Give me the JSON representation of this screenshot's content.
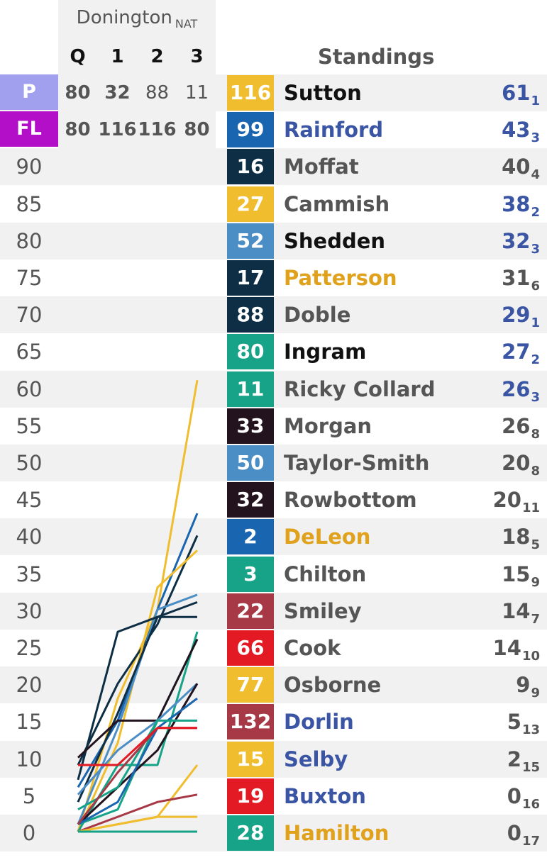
{
  "event": {
    "title": "Donington",
    "sub": "NAT"
  },
  "race_cols": [
    "Q",
    "1",
    "2",
    "3"
  ],
  "pole": {
    "label": "P",
    "values": [
      "80",
      "32",
      "88",
      "11"
    ],
    "color": "#a0a0ee"
  },
  "fastest_lap": {
    "label": "FL",
    "values": [
      "80",
      "116",
      "116",
      "80"
    ],
    "color": "#b40fc8"
  },
  "standings_title": "Standings",
  "scale_labels": [
    "90",
    "85",
    "80",
    "75",
    "70",
    "65",
    "60",
    "55",
    "50",
    "45",
    "40",
    "35",
    "30",
    "25",
    "20",
    "15",
    "10",
    "5",
    "0"
  ],
  "standings": [
    {
      "num": "116",
      "name": "Sutton",
      "points": "61",
      "pos": "1",
      "box": "#f0bd2e",
      "name_color": "#111111",
      "pts_color": "#3b55a5"
    },
    {
      "num": "99",
      "name": "Rainford",
      "points": "43",
      "pos": "3",
      "box": "#1a65b0",
      "name_color": "#3b55a5",
      "pts_color": "#3b55a5"
    },
    {
      "num": "16",
      "name": "Moffat",
      "points": "40",
      "pos": "4",
      "box": "#0d2e45",
      "name_color": "#555555",
      "pts_color": "#555555"
    },
    {
      "num": "27",
      "name": "Cammish",
      "points": "38",
      "pos": "2",
      "box": "#f0bd2e",
      "name_color": "#555555",
      "pts_color": "#3b55a5"
    },
    {
      "num": "52",
      "name": "Shedden",
      "points": "32",
      "pos": "3",
      "box": "#4b8ec6",
      "name_color": "#111111",
      "pts_color": "#3b55a5"
    },
    {
      "num": "17",
      "name": "Patterson",
      "points": "31",
      "pos": "6",
      "box": "#0d2e45",
      "name_color": "#e0a11d",
      "pts_color": "#555555"
    },
    {
      "num": "88",
      "name": "Doble",
      "points": "29",
      "pos": "1",
      "box": "#0d2e45",
      "name_color": "#555555",
      "pts_color": "#3b55a5"
    },
    {
      "num": "80",
      "name": "Ingram",
      "points": "27",
      "pos": "2",
      "box": "#16a388",
      "name_color": "#111111",
      "pts_color": "#3b55a5"
    },
    {
      "num": "11",
      "name": "Ricky Collard",
      "points": "26",
      "pos": "3",
      "box": "#16a388",
      "name_color": "#555555",
      "pts_color": "#3b55a5"
    },
    {
      "num": "33",
      "name": "Morgan",
      "points": "26",
      "pos": "8",
      "box": "#23131f",
      "name_color": "#555555",
      "pts_color": "#555555"
    },
    {
      "num": "50",
      "name": "Taylor-Smith",
      "points": "20",
      "pos": "8",
      "box": "#4b8ec6",
      "name_color": "#555555",
      "pts_color": "#555555"
    },
    {
      "num": "32",
      "name": "Rowbottom",
      "points": "20",
      "pos": "11",
      "box": "#23131f",
      "name_color": "#555555",
      "pts_color": "#555555"
    },
    {
      "num": "2",
      "name": "DeLeon",
      "points": "18",
      "pos": "5",
      "box": "#1a65b0",
      "name_color": "#e0a11d",
      "pts_color": "#555555"
    },
    {
      "num": "3",
      "name": "Chilton",
      "points": "15",
      "pos": "9",
      "box": "#16a388",
      "name_color": "#555555",
      "pts_color": "#555555"
    },
    {
      "num": "22",
      "name": "Smiley",
      "points": "14",
      "pos": "7",
      "box": "#a73845",
      "name_color": "#555555",
      "pts_color": "#555555"
    },
    {
      "num": "66",
      "name": "Cook",
      "points": "14",
      "pos": "10",
      "box": "#e31a24",
      "name_color": "#555555",
      "pts_color": "#555555"
    },
    {
      "num": "77",
      "name": "Osborne",
      "points": "9",
      "pos": "9",
      "box": "#f0bd2e",
      "name_color": "#555555",
      "pts_color": "#555555"
    },
    {
      "num": "132",
      "name": "Dorlin",
      "points": "5",
      "pos": "13",
      "box": "#a73845",
      "name_color": "#3b55a5",
      "pts_color": "#555555"
    },
    {
      "num": "15",
      "name": "Selby",
      "points": "2",
      "pos": "15",
      "box": "#f0bd2e",
      "name_color": "#3b55a5",
      "pts_color": "#555555"
    },
    {
      "num": "19",
      "name": "Buxton",
      "points": "0",
      "pos": "16",
      "box": "#e31a24",
      "name_color": "#3b55a5",
      "pts_color": "#555555"
    },
    {
      "num": "28",
      "name": "Hamilton",
      "points": "0",
      "pos": "17",
      "box": "#16a388",
      "name_color": "#e0a11d",
      "pts_color": "#555555"
    }
  ],
  "chart_data": {
    "type": "line",
    "x": [
      "Q",
      "1",
      "2",
      "3"
    ],
    "ylim": [
      0,
      92
    ],
    "series": [
      {
        "color": "#f0bd2e",
        "values": [
          0,
          18,
          30,
          61
        ]
      },
      {
        "color": "#1a65b0",
        "values": [
          6,
          15,
          30,
          43
        ]
      },
      {
        "color": "#0d2e45",
        "values": [
          9,
          20,
          28,
          40
        ]
      },
      {
        "color": "#f0bd2e",
        "values": [
          0,
          12,
          33,
          38
        ]
      },
      {
        "color": "#4b8ec6",
        "values": [
          1,
          14,
          30,
          32
        ]
      },
      {
        "color": "#0d2e45",
        "values": [
          7,
          27,
          29,
          31
        ]
      },
      {
        "color": "#0d2e45",
        "values": [
          4,
          16,
          29,
          29
        ]
      },
      {
        "color": "#16a388",
        "values": [
          0,
          9,
          9,
          27
        ]
      },
      {
        "color": "#16a388",
        "values": [
          1,
          3,
          15,
          26
        ]
      },
      {
        "color": "#23131f",
        "values": [
          10,
          15,
          15,
          26
        ]
      },
      {
        "color": "#4b8ec6",
        "values": [
          5,
          11,
          15,
          20
        ]
      },
      {
        "color": "#23131f",
        "values": [
          1,
          6,
          11,
          20
        ]
      },
      {
        "color": "#1a65b0",
        "values": [
          1,
          4,
          14,
          18
        ]
      },
      {
        "color": "#16a388",
        "values": [
          3,
          6,
          15,
          15
        ]
      },
      {
        "color": "#a73845",
        "values": [
          1,
          8,
          14,
          14
        ]
      },
      {
        "color": "#e31a24",
        "values": [
          9,
          9,
          14,
          14
        ]
      },
      {
        "color": "#f0bd2e",
        "values": [
          0,
          1,
          2,
          9
        ]
      },
      {
        "color": "#a73845",
        "values": [
          0,
          2,
          4,
          5
        ]
      },
      {
        "color": "#f0bd2e",
        "values": [
          0,
          1,
          2,
          2
        ]
      },
      {
        "color": "#e31a24",
        "values": [
          0,
          0,
          0,
          0
        ]
      },
      {
        "color": "#16a388",
        "values": [
          0,
          0,
          0,
          0
        ]
      }
    ]
  }
}
